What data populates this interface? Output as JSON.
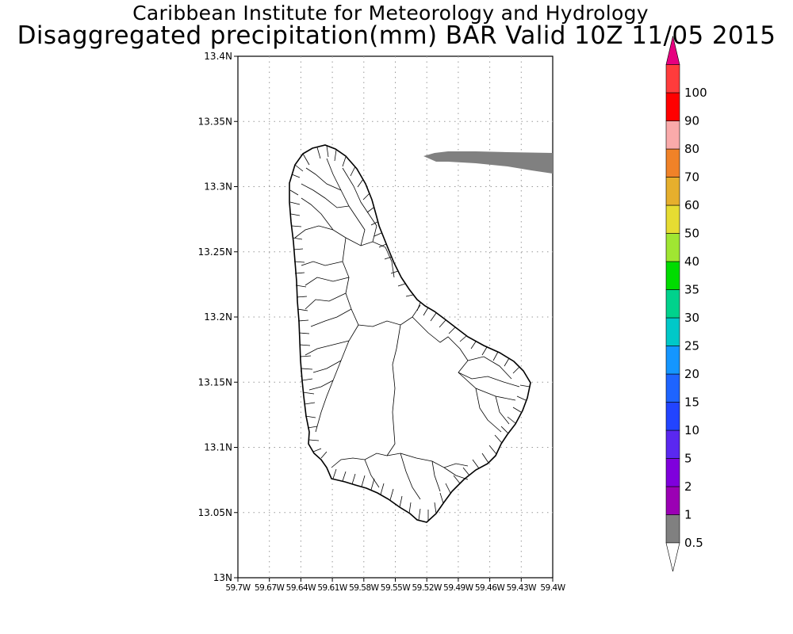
{
  "map": {
    "title_line1": "Caribbean Institute for Meteorology and Hydrology",
    "title_line2": "Disaggregated precipitation(mm) BAR Valid 10Z 11/05 2015",
    "lat_labels": [
      "13.4N",
      "13.35N",
      "13.3N",
      "13.25N",
      "13.2N",
      "13.15N",
      "13.1N",
      "13.05N",
      "13N"
    ],
    "lon_labels": [
      "59.7W",
      "59.67W",
      "59.64W",
      "59.61W",
      "59.58W",
      "59.55W",
      "59.52W",
      "59.49W",
      "59.46W",
      "59.43W",
      "59.4W"
    ],
    "land_fill": "#ffffff",
    "boundary_color": "#000000",
    "precip_area": {
      "value_band": "0.5-1",
      "color": "#808080"
    }
  },
  "legend": {
    "levels": [
      "0.5",
      "1",
      "2",
      "5",
      "10",
      "15",
      "20",
      "25",
      "30",
      "35",
      "40",
      "50",
      "60",
      "70",
      "80",
      "90",
      "100"
    ],
    "colors": [
      "#808080",
      "#9b00b4",
      "#7f00dc",
      "#5a28f0",
      "#2244ff",
      "#1e64ff",
      "#1496ff",
      "#00c8c8",
      "#00d28c",
      "#00dc00",
      "#a0e632",
      "#e6dc32",
      "#e6af2d",
      "#f08228",
      "#faaaaa",
      "#ff0000",
      "#ff3c3c"
    ],
    "upper_arrow_color": "#e6007f",
    "lower_arrow_color": "#ffffff"
  }
}
